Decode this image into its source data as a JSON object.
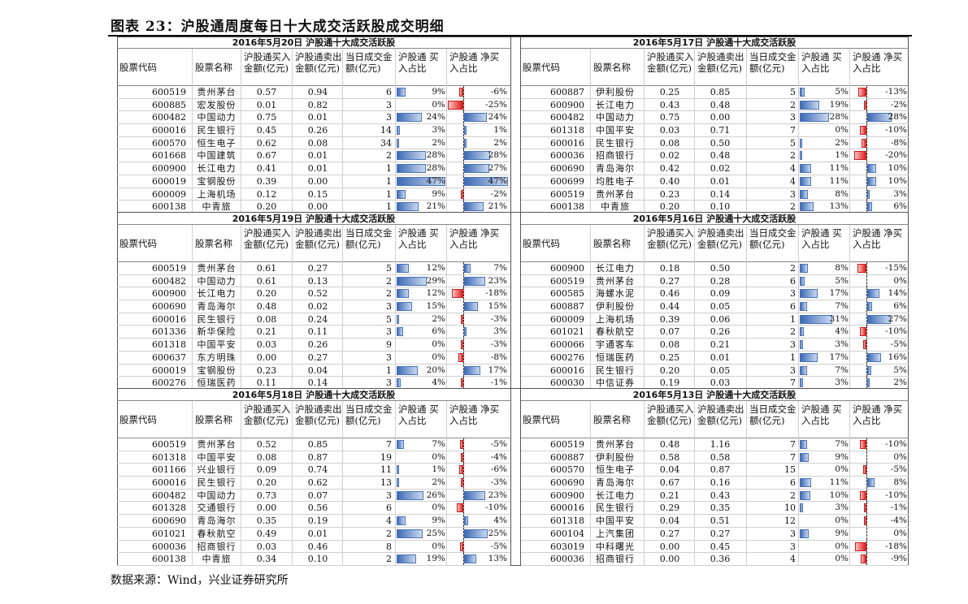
{
  "title": "图表 23：沪股通周度每日十大成交活跃股成交明细",
  "footer": "数据来源：Wind，兴业证券研究所",
  "headers": {
    "code": "股票代码",
    "name": "股票名称",
    "buy": "沪股通买入金额(亿元)",
    "sell": "沪股通卖出金额(亿元)",
    "trade": "当日成交金额(亿元)",
    "buy_share": "沪股通 买入占比",
    "net_share": "沪股通 净买入占比"
  },
  "sections": [
    {
      "date": "2016年5月20日",
      "label": "沪股通十大成交活跃股",
      "rows": [
        {
          "code": "600519",
          "name": "贵州茅台",
          "buy": "0.57",
          "sell": "0.94",
          "trade": "6",
          "buy_pct": 9,
          "buy_label": "9%",
          "net_pct": -6,
          "net_label": "-6%"
        },
        {
          "code": "600885",
          "name": "宏发股份",
          "buy": "0.01",
          "sell": "0.82",
          "trade": "3",
          "buy_pct": 0,
          "buy_label": "0%",
          "net_pct": -25,
          "net_label": "-25%"
        },
        {
          "code": "600482",
          "name": "中国动力",
          "buy": "0.75",
          "sell": "0.01",
          "trade": "3",
          "buy_pct": 24,
          "buy_label": "24%",
          "net_pct": 24,
          "net_label": "24%"
        },
        {
          "code": "600016",
          "name": "民生银行",
          "buy": "0.45",
          "sell": "0.26",
          "trade": "14",
          "buy_pct": 3,
          "buy_label": "3%",
          "net_pct": 1,
          "net_label": "1%"
        },
        {
          "code": "600570",
          "name": "恒生电子",
          "buy": "0.62",
          "sell": "0.08",
          "trade": "34",
          "buy_pct": 2,
          "buy_label": "2%",
          "net_pct": 2,
          "net_label": "2%"
        },
        {
          "code": "601668",
          "name": "中国建筑",
          "buy": "0.67",
          "sell": "0.01",
          "trade": "2",
          "buy_pct": 28,
          "buy_label": "28%",
          "net_pct": 28,
          "net_label": "28%"
        },
        {
          "code": "600900",
          "name": "长江电力",
          "buy": "0.41",
          "sell": "0.01",
          "trade": "1",
          "buy_pct": 28,
          "buy_label": "28%",
          "net_pct": 27,
          "net_label": "27%"
        },
        {
          "code": "600019",
          "name": "宝钢股份",
          "buy": "0.39",
          "sell": "0.00",
          "trade": "1",
          "buy_pct": 47,
          "buy_label": "47%",
          "net_pct": 47,
          "net_label": "47%"
        },
        {
          "code": "600009",
          "name": "上海机场",
          "buy": "0.12",
          "sell": "0.15",
          "trade": "1",
          "buy_pct": 9,
          "buy_label": "9%",
          "net_pct": -2,
          "net_label": "-2%"
        },
        {
          "code": "600138",
          "name": "中青旅",
          "buy": "0.20",
          "sell": "0.00",
          "trade": "1",
          "buy_pct": 21,
          "buy_label": "21%",
          "net_pct": 21,
          "net_label": "21%"
        }
      ]
    },
    {
      "date": "2016年5月17日",
      "label": "沪股通十大成交活跃股",
      "rows": [
        {
          "code": "600887",
          "name": "伊利股份",
          "buy": "0.25",
          "sell": "0.85",
          "trade": "5",
          "buy_pct": 5,
          "buy_label": "5%",
          "net_pct": -13,
          "net_label": "-13%"
        },
        {
          "code": "600900",
          "name": "长江电力",
          "buy": "0.43",
          "sell": "0.48",
          "trade": "2",
          "buy_pct": 19,
          "buy_label": "19%",
          "net_pct": -2,
          "net_label": "-2%"
        },
        {
          "code": "600482",
          "name": "中国动力",
          "buy": "0.75",
          "sell": "0.00",
          "trade": "3",
          "buy_pct": 28,
          "buy_label": "28%",
          "net_pct": 28,
          "net_label": "28%"
        },
        {
          "code": "601318",
          "name": "中国平安",
          "buy": "0.03",
          "sell": "0.71",
          "trade": "7",
          "buy_pct": 0,
          "buy_label": "0%",
          "net_pct": -10,
          "net_label": "-10%"
        },
        {
          "code": "600016",
          "name": "民生银行",
          "buy": "0.08",
          "sell": "0.50",
          "trade": "5",
          "buy_pct": 2,
          "buy_label": "2%",
          "net_pct": -8,
          "net_label": "-8%"
        },
        {
          "code": "600036",
          "name": "招商银行",
          "buy": "0.02",
          "sell": "0.48",
          "trade": "2",
          "buy_pct": 1,
          "buy_label": "1%",
          "net_pct": -20,
          "net_label": "-20%"
        },
        {
          "code": "600690",
          "name": "青岛海尔",
          "buy": "0.42",
          "sell": "0.02",
          "trade": "4",
          "buy_pct": 11,
          "buy_label": "11%",
          "net_pct": 10,
          "net_label": "10%"
        },
        {
          "code": "600699",
          "name": "均胜电子",
          "buy": "0.40",
          "sell": "0.01",
          "trade": "4",
          "buy_pct": 11,
          "buy_label": "11%",
          "net_pct": 10,
          "net_label": "10%"
        },
        {
          "code": "600519",
          "name": "贵州茅台",
          "buy": "0.23",
          "sell": "0.14",
          "trade": "3",
          "buy_pct": 8,
          "buy_label": "8%",
          "net_pct": 3,
          "net_label": "3%"
        },
        {
          "code": "600138",
          "name": "中青旅",
          "buy": "0.20",
          "sell": "0.10",
          "trade": "2",
          "buy_pct": 13,
          "buy_label": "13%",
          "net_pct": 6,
          "net_label": "6%"
        }
      ]
    },
    {
      "date": "2016年5月19日",
      "label": "沪股通十大成交活跃股",
      "rows": [
        {
          "code": "600519",
          "name": "贵州茅台",
          "buy": "0.61",
          "sell": "0.27",
          "trade": "5",
          "buy_pct": 12,
          "buy_label": "12%",
          "net_pct": 7,
          "net_label": "7%"
        },
        {
          "code": "600482",
          "name": "中国动力",
          "buy": "0.61",
          "sell": "0.13",
          "trade": "2",
          "buy_pct": 29,
          "buy_label": "29%",
          "net_pct": 23,
          "net_label": "23%"
        },
        {
          "code": "600900",
          "name": "长江电力",
          "buy": "0.20",
          "sell": "0.52",
          "trade": "2",
          "buy_pct": 12,
          "buy_label": "12%",
          "net_pct": -18,
          "net_label": "-18%"
        },
        {
          "code": "600690",
          "name": "青岛海尔",
          "buy": "0.48",
          "sell": "0.02",
          "trade": "3",
          "buy_pct": 15,
          "buy_label": "15%",
          "net_pct": 15,
          "net_label": "15%"
        },
        {
          "code": "600016",
          "name": "民生银行",
          "buy": "0.08",
          "sell": "0.24",
          "trade": "5",
          "buy_pct": 2,
          "buy_label": "2%",
          "net_pct": -3,
          "net_label": "-3%"
        },
        {
          "code": "601336",
          "name": "新华保险",
          "buy": "0.21",
          "sell": "0.11",
          "trade": "3",
          "buy_pct": 6,
          "buy_label": "6%",
          "net_pct": 3,
          "net_label": "3%"
        },
        {
          "code": "601318",
          "name": "中国平安",
          "buy": "0.03",
          "sell": "0.26",
          "trade": "9",
          "buy_pct": 0,
          "buy_label": "0%",
          "net_pct": -3,
          "net_label": "-3%"
        },
        {
          "code": "600637",
          "name": "东方明珠",
          "buy": "0.00",
          "sell": "0.27",
          "trade": "3",
          "buy_pct": 0,
          "buy_label": "0%",
          "net_pct": -8,
          "net_label": "-8%"
        },
        {
          "code": "600019",
          "name": "宝钢股份",
          "buy": "0.23",
          "sell": "0.04",
          "trade": "1",
          "buy_pct": 20,
          "buy_label": "20%",
          "net_pct": 17,
          "net_label": "17%"
        },
        {
          "code": "600276",
          "name": "恒瑞医药",
          "buy": "0.11",
          "sell": "0.14",
          "trade": "3",
          "buy_pct": 4,
          "buy_label": "4%",
          "net_pct": -1,
          "net_label": "-1%"
        }
      ]
    },
    {
      "date": "2016年5月16日",
      "label": "沪股通十大成交活跃股",
      "rows": [
        {
          "code": "600900",
          "name": "长江电力",
          "buy": "0.18",
          "sell": "0.50",
          "trade": "2",
          "buy_pct": 8,
          "buy_label": "8%",
          "net_pct": -15,
          "net_label": "-15%"
        },
        {
          "code": "600519",
          "name": "贵州茅台",
          "buy": "0.27",
          "sell": "0.28",
          "trade": "6",
          "buy_pct": 5,
          "buy_label": "5%",
          "net_pct": 0,
          "net_label": "0%"
        },
        {
          "code": "600585",
          "name": "海螺水泥",
          "buy": "0.46",
          "sell": "0.09",
          "trade": "3",
          "buy_pct": 17,
          "buy_label": "17%",
          "net_pct": 14,
          "net_label": "14%"
        },
        {
          "code": "600887",
          "name": "伊利股份",
          "buy": "0.44",
          "sell": "0.05",
          "trade": "6",
          "buy_pct": 7,
          "buy_label": "7%",
          "net_pct": 6,
          "net_label": "6%"
        },
        {
          "code": "600009",
          "name": "上海机场",
          "buy": "0.39",
          "sell": "0.06",
          "trade": "1",
          "buy_pct": 31,
          "buy_label": "31%",
          "net_pct": 27,
          "net_label": "27%"
        },
        {
          "code": "601021",
          "name": "春秋航空",
          "buy": "0.07",
          "sell": "0.26",
          "trade": "2",
          "buy_pct": 4,
          "buy_label": "4%",
          "net_pct": -10,
          "net_label": "-10%"
        },
        {
          "code": "600066",
          "name": "宇通客车",
          "buy": "0.08",
          "sell": "0.21",
          "trade": "3",
          "buy_pct": 3,
          "buy_label": "3%",
          "net_pct": -5,
          "net_label": "-5%"
        },
        {
          "code": "600276",
          "name": "恒瑞医药",
          "buy": "0.25",
          "sell": "0.01",
          "trade": "1",
          "buy_pct": 17,
          "buy_label": "17%",
          "net_pct": 16,
          "net_label": "16%"
        },
        {
          "code": "600016",
          "name": "民生银行",
          "buy": "0.20",
          "sell": "0.05",
          "trade": "3",
          "buy_pct": 7,
          "buy_label": "7%",
          "net_pct": 5,
          "net_label": "5%"
        },
        {
          "code": "600030",
          "name": "中信证券",
          "buy": "0.19",
          "sell": "0.03",
          "trade": "7",
          "buy_pct": 3,
          "buy_label": "3%",
          "net_pct": 2,
          "net_label": "2%"
        }
      ]
    },
    {
      "date": "2016年5月18日",
      "label": "沪股通十大成交活跃股",
      "rows": [
        {
          "code": "600519",
          "name": "贵州茅台",
          "buy": "0.52",
          "sell": "0.85",
          "trade": "7",
          "buy_pct": 7,
          "buy_label": "7%",
          "net_pct": -5,
          "net_label": "-5%"
        },
        {
          "code": "601318",
          "name": "中国平安",
          "buy": "0.08",
          "sell": "0.87",
          "trade": "19",
          "buy_pct": 0,
          "buy_label": "0%",
          "net_pct": -4,
          "net_label": "-4%"
        },
        {
          "code": "601166",
          "name": "兴业银行",
          "buy": "0.09",
          "sell": "0.74",
          "trade": "11",
          "buy_pct": 1,
          "buy_label": "1%",
          "net_pct": -6,
          "net_label": "-6%"
        },
        {
          "code": "600016",
          "name": "民生银行",
          "buy": "0.20",
          "sell": "0.62",
          "trade": "13",
          "buy_pct": 2,
          "buy_label": "2%",
          "net_pct": -3,
          "net_label": "-3%"
        },
        {
          "code": "600482",
          "name": "中国动力",
          "buy": "0.73",
          "sell": "0.07",
          "trade": "3",
          "buy_pct": 26,
          "buy_label": "26%",
          "net_pct": 23,
          "net_label": "23%"
        },
        {
          "code": "601328",
          "name": "交通银行",
          "buy": "0.00",
          "sell": "0.56",
          "trade": "6",
          "buy_pct": 0,
          "buy_label": "0%",
          "net_pct": -10,
          "net_label": "-10%"
        },
        {
          "code": "600690",
          "name": "青岛海尔",
          "buy": "0.35",
          "sell": "0.19",
          "trade": "4",
          "buy_pct": 9,
          "buy_label": "9%",
          "net_pct": 4,
          "net_label": "4%"
        },
        {
          "code": "601021",
          "name": "春秋航空",
          "buy": "0.49",
          "sell": "0.01",
          "trade": "2",
          "buy_pct": 25,
          "buy_label": "25%",
          "net_pct": 25,
          "net_label": "25%"
        },
        {
          "code": "600036",
          "name": "招商银行",
          "buy": "0.03",
          "sell": "0.46",
          "trade": "8",
          "buy_pct": 0,
          "buy_label": "0%",
          "net_pct": -5,
          "net_label": "-5%"
        },
        {
          "code": "600138",
          "name": "中青旅",
          "buy": "0.34",
          "sell": "0.10",
          "trade": "2",
          "buy_pct": 19,
          "buy_label": "19%",
          "net_pct": 13,
          "net_label": "13%"
        }
      ]
    },
    {
      "date": "2016年5月13日",
      "label": "沪股通十大成交活跃股",
      "rows": [
        {
          "code": "600519",
          "name": "贵州茅台",
          "buy": "0.48",
          "sell": "1.16",
          "trade": "7",
          "buy_pct": 7,
          "buy_label": "7%",
          "net_pct": -10,
          "net_label": "-10%"
        },
        {
          "code": "600887",
          "name": "伊利股份",
          "buy": "0.58",
          "sell": "0.58",
          "trade": "7",
          "buy_pct": 9,
          "buy_label": "9%",
          "net_pct": 0,
          "net_label": "0%"
        },
        {
          "code": "600570",
          "name": "恒生电子",
          "buy": "0.04",
          "sell": "0.87",
          "trade": "15",
          "buy_pct": 0,
          "buy_label": "0%",
          "net_pct": -5,
          "net_label": "-5%"
        },
        {
          "code": "600690",
          "name": "青岛海尔",
          "buy": "0.67",
          "sell": "0.16",
          "trade": "6",
          "buy_pct": 11,
          "buy_label": "11%",
          "net_pct": 8,
          "net_label": "8%"
        },
        {
          "code": "600900",
          "name": "长江电力",
          "buy": "0.21",
          "sell": "0.43",
          "trade": "2",
          "buy_pct": 10,
          "buy_label": "10%",
          "net_pct": -10,
          "net_label": "-10%"
        },
        {
          "code": "600016",
          "name": "民生银行",
          "buy": "0.29",
          "sell": "0.35",
          "trade": "10",
          "buy_pct": 3,
          "buy_label": "3%",
          "net_pct": -1,
          "net_label": "-1%"
        },
        {
          "code": "601318",
          "name": "中国平安",
          "buy": "0.04",
          "sell": "0.51",
          "trade": "12",
          "buy_pct": 0,
          "buy_label": "0%",
          "net_pct": -4,
          "net_label": "-4%"
        },
        {
          "code": "600104",
          "name": "上汽集团",
          "buy": "0.27",
          "sell": "0.27",
          "trade": "3",
          "buy_pct": 9,
          "buy_label": "9%",
          "net_pct": 0,
          "net_label": "0%"
        },
        {
          "code": "603019",
          "name": "中科曙光",
          "buy": "0.00",
          "sell": "0.45",
          "trade": "3",
          "buy_pct": 0,
          "buy_label": "0%",
          "net_pct": -18,
          "net_label": "-18%"
        },
        {
          "code": "600036",
          "name": "招商银行",
          "buy": "0.00",
          "sell": "0.36",
          "trade": "4",
          "buy_pct": 0,
          "buy_label": "0%",
          "net_pct": -9,
          "net_label": "-9%"
        }
      ]
    }
  ]
}
